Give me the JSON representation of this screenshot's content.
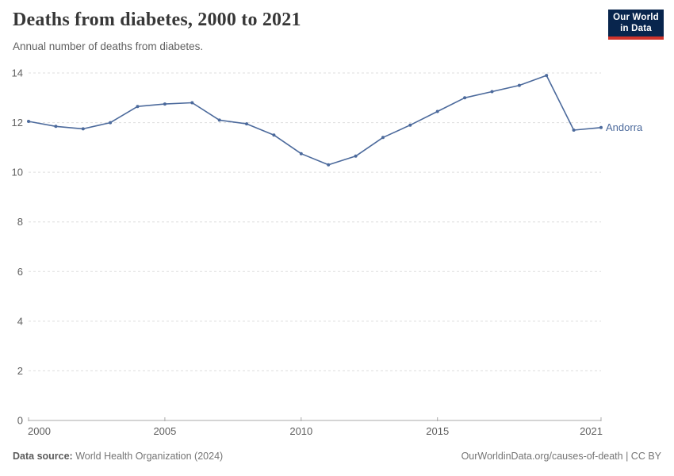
{
  "header": {
    "title": "Deaths from diabetes, 2000 to 2021",
    "subtitle": "Annual number of deaths from diabetes."
  },
  "logo": {
    "line1": "Our World",
    "line2": "in Data",
    "bg_color": "#08254d",
    "accent_color": "#d0342c"
  },
  "chart_data": {
    "type": "line",
    "title": "Deaths from diabetes, 2000 to 2021",
    "subtitle": "Annual number of deaths from diabetes.",
    "x": [
      2000,
      2001,
      2002,
      2003,
      2004,
      2005,
      2006,
      2007,
      2008,
      2009,
      2010,
      2011,
      2012,
      2013,
      2014,
      2015,
      2016,
      2017,
      2018,
      2019,
      2020,
      2021
    ],
    "series": [
      {
        "name": "Andorra",
        "color": "#4c6a9c",
        "values": [
          12.05,
          11.85,
          11.75,
          12.0,
          12.65,
          12.75,
          12.8,
          12.1,
          11.95,
          11.5,
          10.75,
          10.3,
          10.65,
          11.4,
          11.9,
          12.45,
          13.0,
          13.25,
          13.5,
          13.9,
          11.7,
          11.8
        ]
      }
    ],
    "xlabel": "",
    "ylabel": "",
    "ylim": [
      0,
      14
    ],
    "yticks": [
      0,
      2,
      4,
      6,
      8,
      10,
      12,
      14
    ],
    "xticks": [
      2000,
      2005,
      2010,
      2015,
      2021
    ],
    "grid": "horizontal-dashed",
    "legend_position": "end-of-line",
    "markers": true
  },
  "footer": {
    "source_label": "Data source:",
    "source_text": " World Health Organization (2024)",
    "credit": "OurWorldinData.org/causes-of-death | CC BY"
  },
  "colors": {
    "line": "#4c6a9c",
    "grid": "#dddddd",
    "axis": "#a8a8a8",
    "tick_label": "#5e5e5e",
    "title": "#373737",
    "subtitle": "#606060",
    "footer": "#757575"
  }
}
